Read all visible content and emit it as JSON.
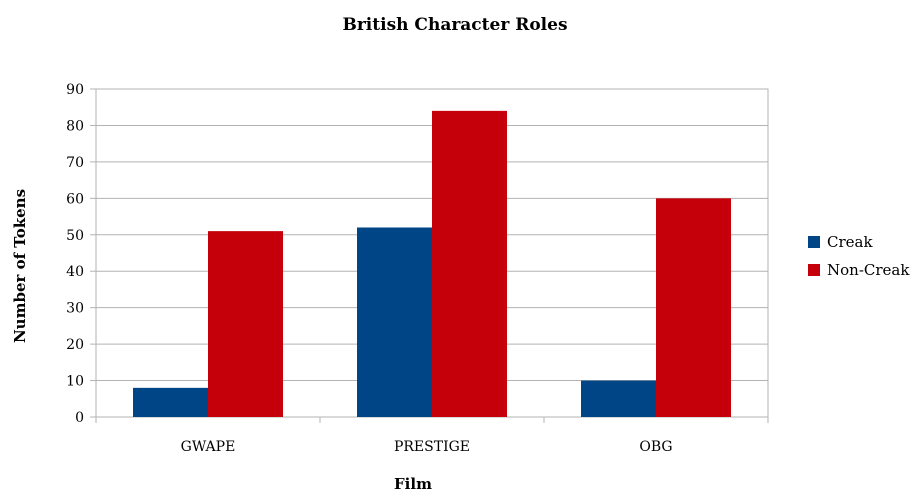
{
  "chart_data": {
    "type": "bar",
    "title": "British Character Roles",
    "xlabel": "Film",
    "ylabel": "Number of Tokens",
    "categories": [
      "GWAPE",
      "PRESTIGE",
      "OBG"
    ],
    "series": [
      {
        "name": "Creak",
        "color": "#004586",
        "values": [
          8,
          52,
          10
        ]
      },
      {
        "name": "Non-Creak",
        "color": "#c5000b",
        "values": [
          51,
          84,
          60
        ]
      }
    ],
    "ylim": [
      0,
      90
    ],
    "yticks": [
      "0",
      "10",
      "20",
      "30",
      "40",
      "50",
      "60",
      "70",
      "80",
      "90"
    ],
    "grid": true,
    "legend_position": "right"
  }
}
